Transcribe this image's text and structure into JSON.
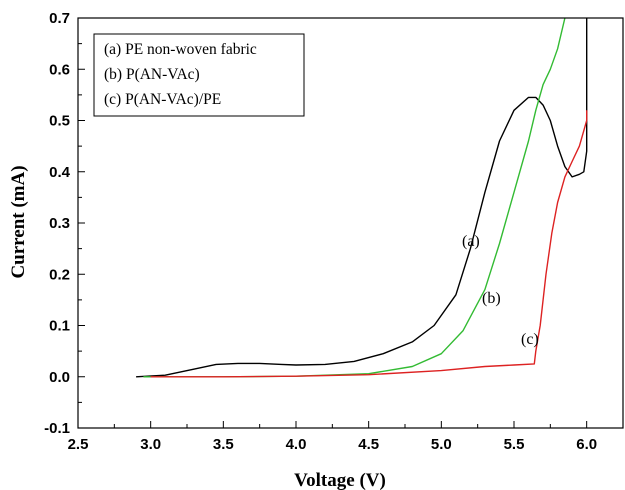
{
  "chart_data": {
    "type": "line",
    "title": "",
    "xlabel": "Voltage (V)",
    "ylabel": "Current (mA)",
    "xlim": [
      2.5,
      6.25
    ],
    "ylim": [
      -0.1,
      0.7
    ],
    "xticks": [
      "2.5",
      "3.0",
      "3.5",
      "4.0",
      "4.5",
      "5.0",
      "5.5",
      "6.0"
    ],
    "yticks": [
      "-0.1",
      "0.0",
      "0.1",
      "0.2",
      "0.3",
      "0.4",
      "0.5",
      "0.6",
      "0.7"
    ],
    "legend": [
      "(a) PE non-woven fabric",
      "(b) P(AN-VAc)",
      "(c) P(AN-VAc)/PE"
    ],
    "legend_position": "top-left",
    "grid": false,
    "series": [
      {
        "name": "(a) PE non-woven fabric",
        "label": "(a)",
        "color": "#000000",
        "points": [
          [
            2.9,
            0.0
          ],
          [
            3.1,
            0.003
          ],
          [
            3.3,
            0.015
          ],
          [
            3.45,
            0.024
          ],
          [
            3.6,
            0.026
          ],
          [
            3.75,
            0.026
          ],
          [
            3.9,
            0.024
          ],
          [
            4.0,
            0.023
          ],
          [
            4.2,
            0.024
          ],
          [
            4.4,
            0.03
          ],
          [
            4.6,
            0.045
          ],
          [
            4.8,
            0.068
          ],
          [
            4.95,
            0.1
          ],
          [
            5.1,
            0.16
          ],
          [
            5.2,
            0.25
          ],
          [
            5.3,
            0.36
          ],
          [
            5.4,
            0.46
          ],
          [
            5.5,
            0.52
          ],
          [
            5.6,
            0.545
          ],
          [
            5.65,
            0.545
          ],
          [
            5.7,
            0.53
          ],
          [
            5.75,
            0.5
          ],
          [
            5.8,
            0.45
          ],
          [
            5.85,
            0.41
          ],
          [
            5.9,
            0.39
          ],
          [
            5.95,
            0.395
          ],
          [
            5.98,
            0.4
          ],
          [
            6.0,
            0.44
          ],
          [
            6.0,
            0.7
          ]
        ]
      },
      {
        "name": "(b) P(AN-VAc)",
        "label": "(b)",
        "color": "#33bb33",
        "points": [
          [
            2.95,
            0.0
          ],
          [
            3.5,
            0.0
          ],
          [
            4.0,
            0.001
          ],
          [
            4.5,
            0.006
          ],
          [
            4.8,
            0.02
          ],
          [
            5.0,
            0.045
          ],
          [
            5.15,
            0.09
          ],
          [
            5.3,
            0.17
          ],
          [
            5.4,
            0.26
          ],
          [
            5.5,
            0.36
          ],
          [
            5.6,
            0.46
          ],
          [
            5.65,
            0.52
          ],
          [
            5.7,
            0.57
          ],
          [
            5.75,
            0.6
          ],
          [
            5.8,
            0.64
          ],
          [
            5.85,
            0.7
          ]
        ]
      },
      {
        "name": "(c) P(AN-VAc)/PE",
        "label": "(c)",
        "color": "#dd2222",
        "points": [
          [
            3.0,
            0.0
          ],
          [
            3.5,
            0.0
          ],
          [
            4.0,
            0.001
          ],
          [
            4.5,
            0.004
          ],
          [
            5.0,
            0.012
          ],
          [
            5.3,
            0.02
          ],
          [
            5.5,
            0.023
          ],
          [
            5.64,
            0.025
          ],
          [
            5.65,
            0.05
          ],
          [
            5.68,
            0.1
          ],
          [
            5.72,
            0.2
          ],
          [
            5.76,
            0.28
          ],
          [
            5.8,
            0.34
          ],
          [
            5.85,
            0.39
          ],
          [
            5.9,
            0.42
          ],
          [
            5.95,
            0.45
          ],
          [
            6.0,
            0.5
          ],
          [
            6.0,
            0.52
          ]
        ]
      }
    ]
  }
}
